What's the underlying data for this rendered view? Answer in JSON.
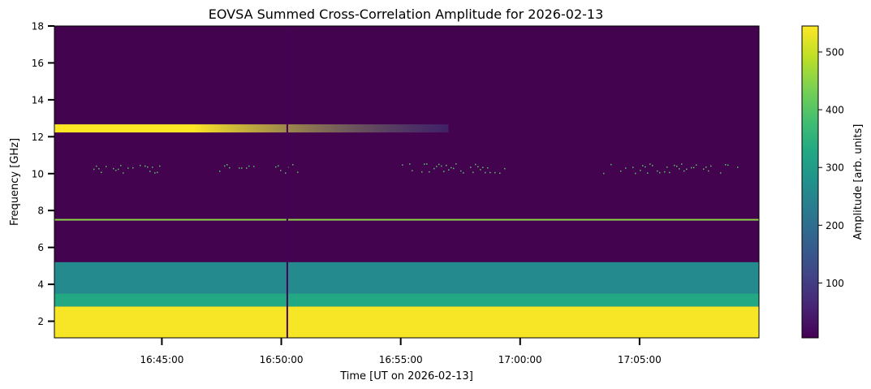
{
  "chart_data": {
    "type": "heatmap",
    "title": "EOVSA Summed Cross-Correlation Amplitude for 2026-02-13",
    "xlabel": "Time [UT on 2026-02-13]",
    "ylabel": "Frequency [GHz]",
    "x_range": [
      "16:40:30",
      "17:10:00"
    ],
    "x_tick_labels": [
      "16:45:00",
      "16:50:00",
      "16:55:00",
      "17:00:00",
      "17:05:00"
    ],
    "ylim": [
      1.1,
      18
    ],
    "y_ticks": [
      2,
      4,
      6,
      8,
      10,
      12,
      14,
      16,
      18
    ],
    "colormap": "viridis",
    "colorbar": {
      "label": "Amplitude [arb. units]",
      "range": [
        5,
        545
      ],
      "ticks": [
        100,
        200,
        300,
        400,
        500
      ]
    },
    "features": [
      {
        "name": "low-frequency band",
        "freq_range_ghz": [
          1.1,
          2.8
        ],
        "level": 540
      },
      {
        "name": "band edge",
        "freq_range_ghz": [
          2.8,
          3.5
        ],
        "level": 330
      },
      {
        "name": "mid band",
        "freq_range_ghz": [
          3.5,
          5.2
        ],
        "level": 260
      },
      {
        "name": "12.5 GHz line",
        "freq_ghz": 12.45,
        "time_range": [
          "16:40:30",
          "16:57:00"
        ],
        "level_start": 545,
        "level_end": 130
      },
      {
        "name": "7.5 GHz line",
        "freq_ghz": 7.5,
        "level": 450
      },
      {
        "name": "scattered pixels near 10.3 GHz",
        "freq_ghz": 10.3,
        "level": 400
      },
      {
        "name": "vertical dropout",
        "time": "16:50:15",
        "level": 5
      }
    ],
    "colors": {
      "viridis_low": "#440154",
      "viridis_mid": "#21918c",
      "viridis_high": "#fde725"
    }
  }
}
